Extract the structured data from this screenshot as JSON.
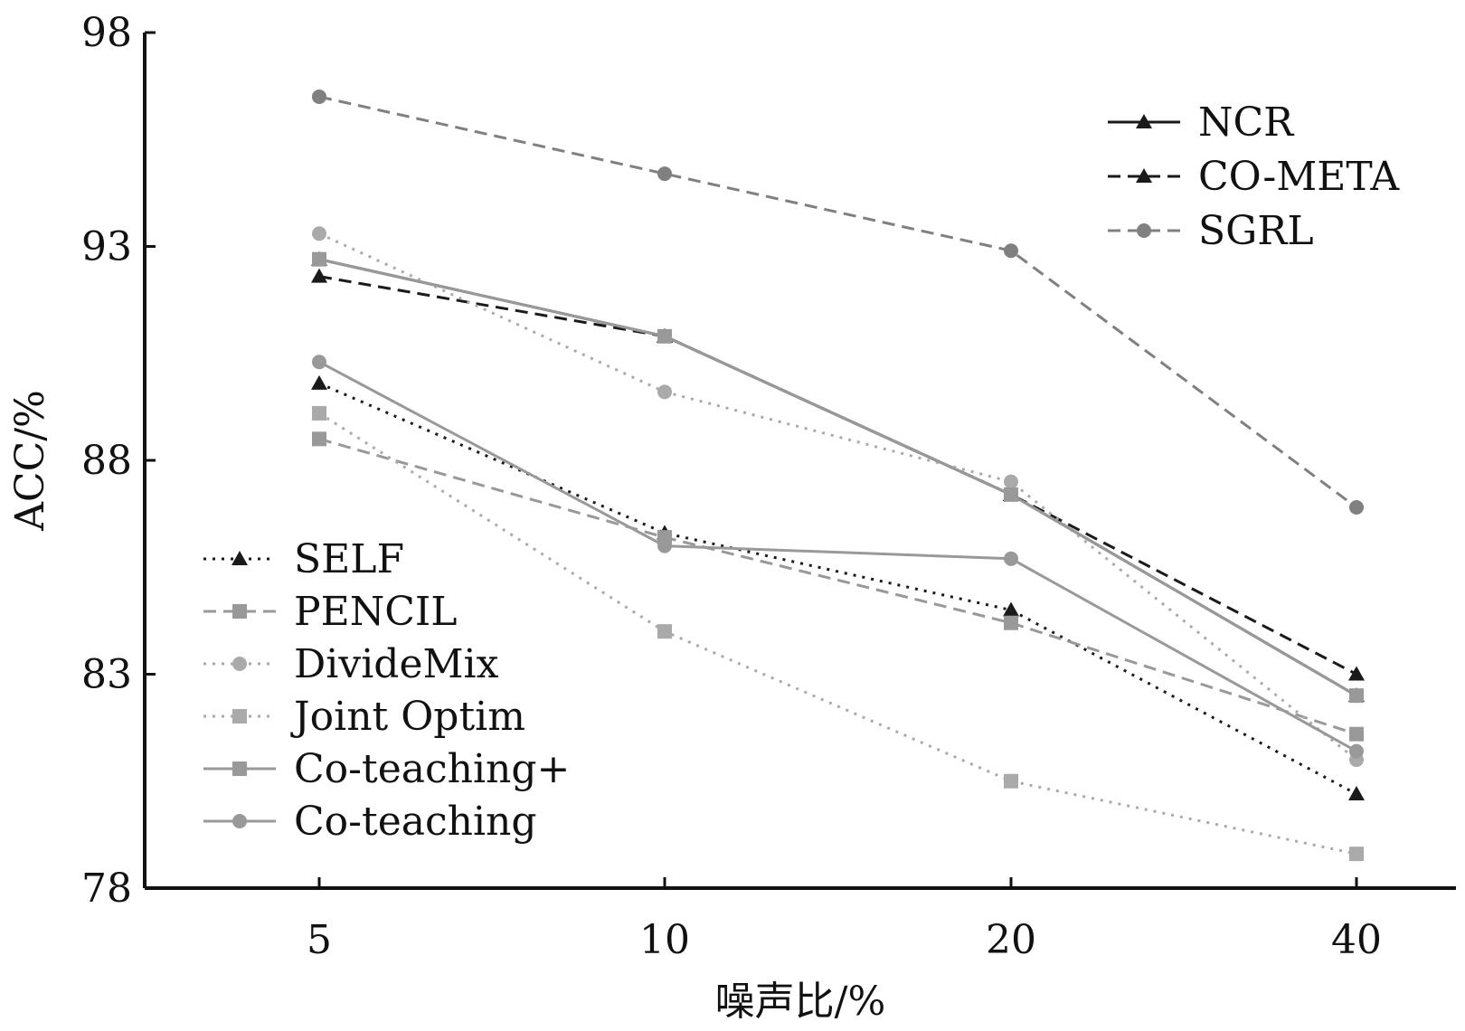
{
  "chart_data": {
    "type": "line",
    "xlabel": "噪声比/%",
    "ylabel": "ACC/%",
    "categories": [
      "5",
      "10",
      "20",
      "40"
    ],
    "ylim": [
      78,
      98
    ],
    "yticks": [
      78,
      83,
      88,
      93,
      98
    ],
    "grid": false,
    "series": [
      {
        "name": "NCR",
        "values": [
          92.7,
          90.9,
          87.2,
          82.5
        ],
        "color": "#1a1a1a",
        "dash": "solid",
        "marker": "triangle",
        "legend_group": "top-right"
      },
      {
        "name": "CO-META",
        "values": [
          92.3,
          90.9,
          87.2,
          83.0
        ],
        "color": "#1a1a1a",
        "dash": "dashed",
        "marker": "triangle",
        "legend_group": "top-right"
      },
      {
        "name": "SGRL",
        "values": [
          96.5,
          94.7,
          92.9,
          86.9
        ],
        "color": "#808080",
        "dash": "dashed",
        "marker": "circle",
        "legend_group": "top-right"
      },
      {
        "name": "SELF",
        "values": [
          89.8,
          86.3,
          84.5,
          80.2
        ],
        "color": "#1a1a1a",
        "dash": "dotted",
        "marker": "triangle",
        "legend_group": "bottom-left"
      },
      {
        "name": "PENCIL",
        "values": [
          88.5,
          86.2,
          84.2,
          81.6
        ],
        "color": "#999999",
        "dash": "dashed",
        "marker": "square",
        "legend_group": "bottom-left"
      },
      {
        "name": "DivideMix",
        "values": [
          93.3,
          89.6,
          87.5,
          81.0
        ],
        "color": "#aaaaaa",
        "dash": "dotted",
        "marker": "circle",
        "legend_group": "bottom-left"
      },
      {
        "name": "Joint Optim",
        "values": [
          89.1,
          84.0,
          80.5,
          78.8
        ],
        "color": "#aaaaaa",
        "dash": "dotted",
        "marker": "square",
        "legend_group": "bottom-left"
      },
      {
        "name": "Co-teaching+",
        "values": [
          92.7,
          90.9,
          87.2,
          82.5
        ],
        "color": "#999999",
        "dash": "solid",
        "marker": "square",
        "legend_group": "bottom-left"
      },
      {
        "name": "Co-teaching",
        "values": [
          90.3,
          86.0,
          85.7,
          81.2
        ],
        "color": "#999999",
        "dash": "solid",
        "marker": "circle",
        "legend_group": "bottom-left"
      }
    ],
    "legend": [
      {
        "placement": "top-right",
        "entries": [
          "NCR",
          "CO-META",
          "SGRL"
        ]
      },
      {
        "placement": "bottom-left",
        "entries": [
          "SELF",
          "PENCIL",
          "DivideMix",
          "Joint Optim",
          "Co-teaching+",
          "Co-teaching"
        ]
      }
    ]
  }
}
